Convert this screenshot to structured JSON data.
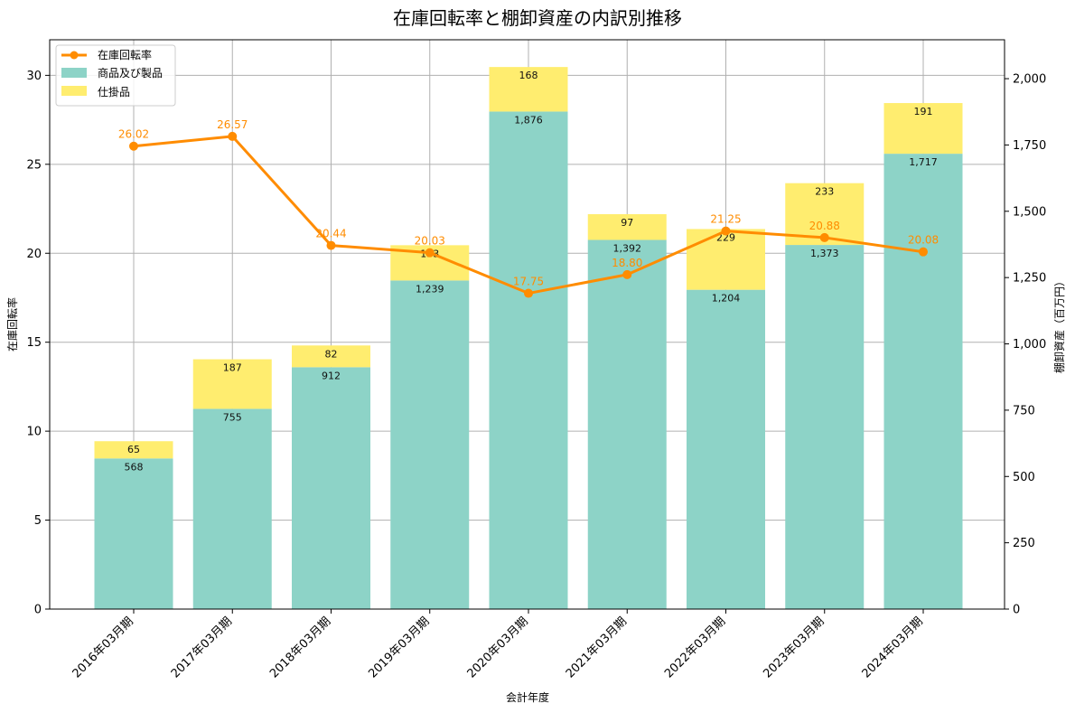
{
  "chart_data": {
    "type": "bar",
    "title": "在庫回転率と棚卸資産の内訳別推移",
    "xlabel": "会計年度",
    "ylabel_left": "在庫回転率",
    "ylabel_right": "棚卸資産（百万円）",
    "categories": [
      "2016年03月期",
      "2017年03月期",
      "2018年03月期",
      "2019年03月期",
      "2020年03月期",
      "2021年03月期",
      "2022年03月期",
      "2023年03月期",
      "2024年03月期"
    ],
    "ylim_left": [
      0,
      32
    ],
    "ylim_right": [
      0,
      2146.7
    ],
    "yticks_left": [
      0,
      5,
      10,
      15,
      20,
      25,
      30
    ],
    "yticks_right": [
      0,
      250,
      500,
      750,
      1000,
      1250,
      1500,
      1750,
      2000
    ],
    "grid": true,
    "legend_position": "top-left",
    "stacked_series": [
      {
        "name": "商品及び製品",
        "color": "#8dd3c7",
        "values": [
          568,
          755,
          912,
          1239,
          1876,
          1392,
          1204,
          1373,
          1717
        ],
        "labels": [
          "568",
          "755",
          "912",
          "1,239",
          "1,876",
          "1,392",
          "1,204",
          "1,373",
          "1,717"
        ]
      },
      {
        "name": "仕掛品",
        "color": "#ffed6f",
        "values": [
          65,
          187,
          82,
          133,
          168,
          97,
          229,
          233,
          191
        ],
        "labels": [
          "65",
          "187",
          "82",
          "133",
          "168",
          "97",
          "229",
          "233",
          "191"
        ]
      }
    ],
    "line_series": {
      "name": "在庫回転率",
      "color": "#ff8c00",
      "values": [
        26.02,
        26.57,
        20.44,
        20.03,
        17.75,
        18.8,
        21.25,
        20.88,
        20.08
      ],
      "labels": [
        "26.02",
        "26.57",
        "20.44",
        "20.03",
        "17.75",
        "18.80",
        "21.25",
        "20.88",
        "20.08"
      ]
    }
  }
}
